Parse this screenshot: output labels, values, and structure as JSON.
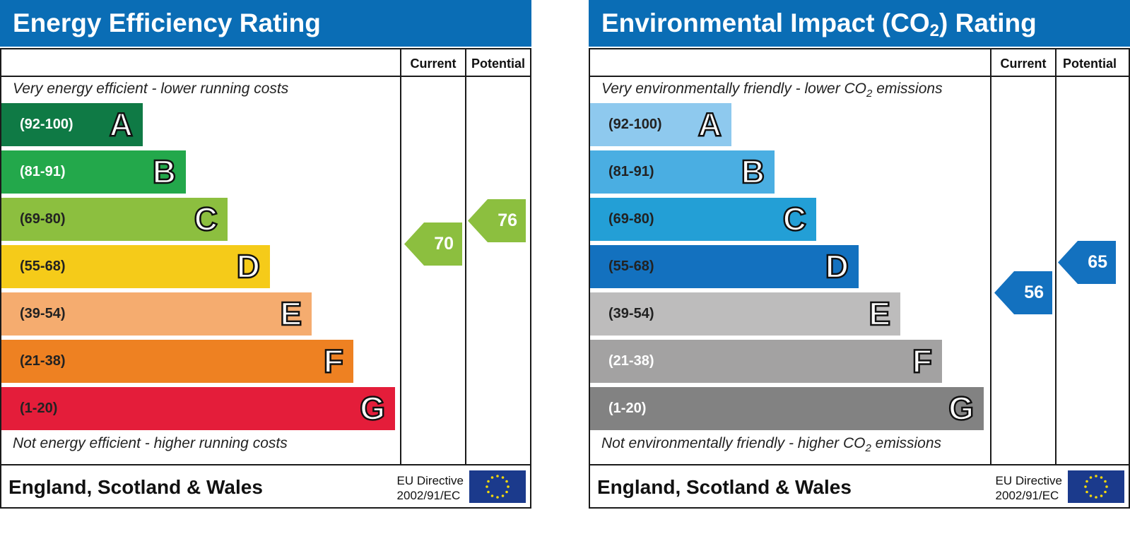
{
  "chart_data": [
    {
      "type": "bar",
      "title": "Energy Efficiency Rating",
      "columns": [
        "Current",
        "Potential"
      ],
      "top_note": "Very energy efficient - lower running costs",
      "bottom_note": "Not energy efficient - higher running costs",
      "categories": [
        "A",
        "B",
        "C",
        "D",
        "E",
        "F",
        "G"
      ],
      "ranges": [
        "(92-100)",
        "(81-91)",
        "(69-80)",
        "(55-68)",
        "(39-54)",
        "(21-38)",
        "(1-20)"
      ],
      "colors": [
        "#0f7a45",
        "#23a84b",
        "#8cbf3f",
        "#f5cb19",
        "#f5ac6f",
        "#ee8122",
        "#e41d3a"
      ],
      "dark_range_labels": [
        "C",
        "D",
        "E",
        "F",
        "G"
      ],
      "current": 70,
      "potential": 76,
      "current_color": "#8cbf3f",
      "potential_color": "#8cbf3f",
      "footer": "England, Scotland & Wales",
      "directive_line1": "EU Directive",
      "directive_line2": "2002/91/EC"
    },
    {
      "type": "bar",
      "title_main": "Environmental Impact (CO",
      "title_sub": "2",
      "title_end": ") Rating",
      "columns": [
        "Current",
        "Potential"
      ],
      "top_note_main": "Very environmentally friendly - lower CO",
      "top_note_sub": "2",
      "top_note_end": " emissions",
      "bottom_note_main": "Not environmentally friendly - higher CO",
      "bottom_note_sub": "2",
      "bottom_note_end": " emissions",
      "categories": [
        "A",
        "B",
        "C",
        "D",
        "E",
        "F",
        "G"
      ],
      "ranges": [
        "(92-100)",
        "(81-91)",
        "(69-80)",
        "(55-68)",
        "(39-54)",
        "(21-38)",
        "(1-20)"
      ],
      "colors": [
        "#8ec9ee",
        "#4aaee2",
        "#239fd6",
        "#1371bf",
        "#bdbcbc",
        "#a3a2a2",
        "#828282"
      ],
      "dark_range_labels": [
        "A",
        "B",
        "C",
        "D",
        "E"
      ],
      "current": 56,
      "potential": 65,
      "current_color": "#1371bf",
      "potential_color": "#1371bf",
      "footer": "England, Scotland & Wales",
      "directive_line1": "EU Directive",
      "directive_line2": "2002/91/EC"
    }
  ]
}
